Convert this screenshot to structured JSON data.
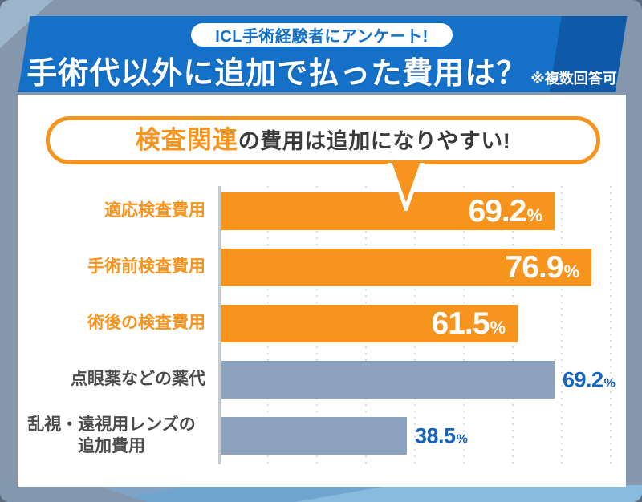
{
  "header": {
    "badge": "ICL手術経験者にアンケート!",
    "title": "手術代以外に追加で払った費用は？",
    "note": "※複数回答可"
  },
  "callout": {
    "highlight": "検査関連",
    "rest": "の費用は追加になりやすい!"
  },
  "chart_data": {
    "type": "bar",
    "orientation": "horizontal",
    "title": "手術代以外に追加で払った費用は？（複数回答可）",
    "unit": "%",
    "xlim": [
      0,
      83
    ],
    "grid": "dotted-vertical, every 10%",
    "legend": "none",
    "categories": [
      "適応検査費用",
      "手術前検査費用",
      "術後の検査費用",
      "点眼薬などの薬代",
      "乱視・遠視用レンズの追加費用"
    ],
    "values": [
      69.2,
      76.9,
      61.5,
      69.2,
      38.5
    ],
    "bars": [
      {
        "label_lines": [
          "適応検査費用"
        ],
        "value": "69.2",
        "color": "orange",
        "label_color": "orange",
        "value_position": "inside"
      },
      {
        "label_lines": [
          "手術前検査費用"
        ],
        "value": "76.9",
        "color": "orange",
        "label_color": "orange",
        "value_position": "inside"
      },
      {
        "label_lines": [
          "術後の検査費用"
        ],
        "value": "61.5",
        "color": "orange",
        "label_color": "orange",
        "value_position": "inside"
      },
      {
        "label_lines": [
          "点眼薬などの薬代"
        ],
        "value": "69.2",
        "color": "gray",
        "label_color": "dark",
        "value_position": "outside"
      },
      {
        "label_lines": [
          "乱視・遠視用レンズの",
          "追加費用"
        ],
        "value": "38.5",
        "color": "gray",
        "label_color": "dark",
        "value_position": "outside"
      }
    ],
    "colors": {
      "highlight_bar": "#F7941E",
      "normal_bar": "#8CA2BE",
      "inside_value_text": "#FFFFFF",
      "outside_value_text": "#1565C0"
    }
  },
  "theme": {
    "band_blue": "#1571C8",
    "band_blue_dark": "#0F59A9",
    "background": "#8497AC",
    "accent_orange": "#F7941E",
    "percent_sign": "%"
  }
}
